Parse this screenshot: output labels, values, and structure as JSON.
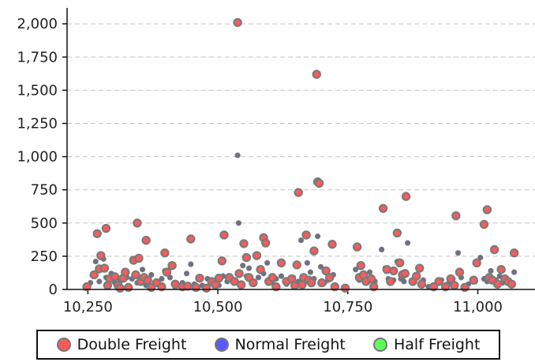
{
  "chart_data": {
    "type": "scatter",
    "title": "",
    "xlabel": "",
    "ylabel": "",
    "xlim": [
      10210,
      11110
    ],
    "ylim": [
      0,
      2120
    ],
    "x_ticks": [
      10250,
      10500,
      10750,
      11000
    ],
    "x_tick_labels": [
      "10,250",
      "10,500",
      "10,750",
      "11,000"
    ],
    "y_ticks": [
      0,
      250,
      500,
      750,
      1000,
      1250,
      1500,
      1750,
      2000
    ],
    "y_tick_labels": [
      "0",
      "250",
      "500",
      "750",
      "1,000",
      "1,250",
      "1,500",
      "1,750",
      "2,000"
    ],
    "grid": "horizontal dashed",
    "legend_position": "bottom",
    "series": [
      {
        "name": "Double Freight",
        "color": "#ff5a5a",
        "points": [
          [
            10248,
            20
          ],
          [
            10262,
            110
          ],
          [
            10268,
            420
          ],
          [
            10272,
            155
          ],
          [
            10275,
            255
          ],
          [
            10282,
            160
          ],
          [
            10285,
            460
          ],
          [
            10288,
            30
          ],
          [
            10292,
            80
          ],
          [
            10302,
            95
          ],
          [
            10308,
            30
          ],
          [
            10312,
            10
          ],
          [
            10318,
            85
          ],
          [
            10322,
            130
          ],
          [
            10328,
            15
          ],
          [
            10338,
            220
          ],
          [
            10342,
            110
          ],
          [
            10345,
            500
          ],
          [
            10348,
            235
          ],
          [
            10352,
            60
          ],
          [
            10358,
            90
          ],
          [
            10362,
            370
          ],
          [
            10365,
            70
          ],
          [
            10372,
            15
          ],
          [
            10382,
            50
          ],
          [
            10392,
            20
          ],
          [
            10398,
            275
          ],
          [
            10402,
            130
          ],
          [
            10412,
            180
          ],
          [
            10418,
            40
          ],
          [
            10432,
            20
          ],
          [
            10442,
            25
          ],
          [
            10448,
            380
          ],
          [
            10458,
            15
          ],
          [
            10465,
            85
          ],
          [
            10478,
            10
          ],
          [
            10488,
            60
          ],
          [
            10495,
            35
          ],
          [
            10502,
            85
          ],
          [
            10508,
            215
          ],
          [
            10512,
            410
          ],
          [
            10522,
            90
          ],
          [
            10532,
            60
          ],
          [
            10538,
            2010
          ],
          [
            10541,
            120
          ],
          [
            10545,
            35
          ],
          [
            10550,
            345
          ],
          [
            10555,
            240
          ],
          [
            10560,
            90
          ],
          [
            10568,
            50
          ],
          [
            10575,
            255
          ],
          [
            10582,
            150
          ],
          [
            10588,
            390
          ],
          [
            10592,
            350
          ],
          [
            10598,
            60
          ],
          [
            10605,
            90
          ],
          [
            10612,
            20
          ],
          [
            10622,
            200
          ],
          [
            10632,
            60
          ],
          [
            10642,
            80
          ],
          [
            10648,
            30
          ],
          [
            10652,
            185
          ],
          [
            10655,
            730
          ],
          [
            10662,
            35
          ],
          [
            10665,
            90
          ],
          [
            10670,
            410
          ],
          [
            10675,
            70
          ],
          [
            10680,
            50
          ],
          [
            10685,
            290
          ],
          [
            10690,
            1620
          ],
          [
            10692,
            810
          ],
          [
            10695,
            800
          ],
          [
            10700,
            50
          ],
          [
            10708,
            140
          ],
          [
            10715,
            90
          ],
          [
            10720,
            340
          ],
          [
            10725,
            20
          ],
          [
            10745,
            10
          ],
          [
            10768,
            320
          ],
          [
            10772,
            90
          ],
          [
            10775,
            180
          ],
          [
            10780,
            110
          ],
          [
            10785,
            60
          ],
          [
            10795,
            80
          ],
          [
            10800,
            20
          ],
          [
            10818,
            610
          ],
          [
            10825,
            150
          ],
          [
            10832,
            60
          ],
          [
            10838,
            140
          ],
          [
            10845,
            425
          ],
          [
            10850,
            200
          ],
          [
            10855,
            110
          ],
          [
            10860,
            120
          ],
          [
            10862,
            700
          ],
          [
            10875,
            60
          ],
          [
            10882,
            100
          ],
          [
            10888,
            160
          ],
          [
            10892,
            40
          ],
          [
            10915,
            20
          ],
          [
            10925,
            60
          ],
          [
            10938,
            20
          ],
          [
            10948,
            80
          ],
          [
            10955,
            30
          ],
          [
            10958,
            555
          ],
          [
            10965,
            130
          ],
          [
            10975,
            15
          ],
          [
            10992,
            70
          ],
          [
            10998,
            200
          ],
          [
            11012,
            490
          ],
          [
            11018,
            600
          ],
          [
            11022,
            90
          ],
          [
            11028,
            70
          ],
          [
            11032,
            300
          ],
          [
            11038,
            40
          ],
          [
            11045,
            150
          ],
          [
            11052,
            80
          ],
          [
            11058,
            60
          ],
          [
            11065,
            40
          ],
          [
            11070,
            275
          ]
        ]
      },
      {
        "name": "Normal Freight",
        "color": "#5a5aff",
        "points": [
          [
            10255,
            50
          ],
          [
            10265,
            210
          ],
          [
            10272,
            60
          ],
          [
            10280,
            230
          ],
          [
            10285,
            90
          ],
          [
            10295,
            120
          ],
          [
            10302,
            50
          ],
          [
            10312,
            60
          ],
          [
            10325,
            90
          ],
          [
            10335,
            80
          ],
          [
            10345,
            50
          ],
          [
            10355,
            150
          ],
          [
            10362,
            30
          ],
          [
            10372,
            110
          ],
          [
            10380,
            60
          ],
          [
            10392,
            80
          ],
          [
            10398,
            140
          ],
          [
            10408,
            90
          ],
          [
            10418,
            20
          ],
          [
            10432,
            50
          ],
          [
            10440,
            120
          ],
          [
            10448,
            190
          ],
          [
            10455,
            40
          ],
          [
            10470,
            30
          ],
          [
            10480,
            80
          ],
          [
            10492,
            50
          ],
          [
            10502,
            30
          ],
          [
            10510,
            100
          ],
          [
            10518,
            60
          ],
          [
            10528,
            70
          ],
          [
            10538,
            1010
          ],
          [
            10540,
            500
          ],
          [
            10548,
            180
          ],
          [
            10555,
            100
          ],
          [
            10560,
            160
          ],
          [
            10568,
            50
          ],
          [
            10578,
            90
          ],
          [
            10588,
            120
          ],
          [
            10595,
            200
          ],
          [
            10605,
            50
          ],
          [
            10612,
            80
          ],
          [
            10622,
            100
          ],
          [
            10632,
            40
          ],
          [
            10645,
            90
          ],
          [
            10655,
            60
          ],
          [
            10660,
            370
          ],
          [
            10665,
            40
          ],
          [
            10672,
            200
          ],
          [
            10678,
            130
          ],
          [
            10685,
            80
          ],
          [
            10692,
            400
          ],
          [
            10698,
            170
          ],
          [
            10705,
            50
          ],
          [
            10712,
            70
          ],
          [
            10722,
            110
          ],
          [
            10765,
            150
          ],
          [
            10772,
            70
          ],
          [
            10780,
            110
          ],
          [
            10792,
            130
          ],
          [
            10802,
            60
          ],
          [
            10815,
            300
          ],
          [
            10822,
            160
          ],
          [
            10828,
            80
          ],
          [
            10838,
            70
          ],
          [
            10845,
            210
          ],
          [
            10852,
            80
          ],
          [
            10858,
            60
          ],
          [
            10865,
            350
          ],
          [
            10872,
            60
          ],
          [
            10882,
            90
          ],
          [
            10895,
            70
          ],
          [
            10905,
            20
          ],
          [
            10922,
            50
          ],
          [
            10930,
            70
          ],
          [
            10942,
            40
          ],
          [
            10952,
            80
          ],
          [
            10962,
            275
          ],
          [
            10968,
            90
          ],
          [
            10982,
            40
          ],
          [
            10995,
            60
          ],
          [
            11005,
            240
          ],
          [
            11012,
            80
          ],
          [
            11018,
            60
          ],
          [
            11025,
            140
          ],
          [
            11035,
            70
          ],
          [
            11042,
            100
          ],
          [
            11048,
            50
          ],
          [
            11055,
            80
          ],
          [
            11062,
            60
          ],
          [
            11070,
            130
          ]
        ]
      },
      {
        "name": "Half Freight",
        "color": "#5aff5a",
        "points": []
      }
    ]
  }
}
